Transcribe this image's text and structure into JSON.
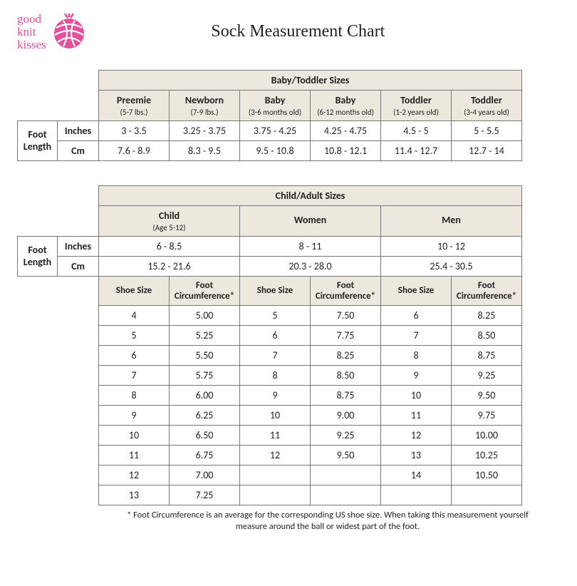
{
  "brand": {
    "line1": "good",
    "line2": "knit",
    "line3": "kisses",
    "color": "#e84f9b"
  },
  "title": "Sock Measurement Chart",
  "table1": {
    "header_strip": "Baby/Toddler Sizes",
    "row_label": "Foot Length",
    "unit1": "Inches",
    "unit2": "Cm",
    "cols": [
      {
        "name": "Preemie",
        "sub": "(5-7 lbs.)"
      },
      {
        "name": "Newborn",
        "sub": "(7-9 lbs.)"
      },
      {
        "name": "Baby",
        "sub": "(3-6 months old)"
      },
      {
        "name": "Baby",
        "sub": "(6-12 months old)"
      },
      {
        "name": "Toddler",
        "sub": "(1-2 years old)"
      },
      {
        "name": "Toddler",
        "sub": "(3-4 years old)"
      }
    ],
    "inches": [
      "3 - 3.5",
      "3.25 - 3.75",
      "3.75 - 4.25",
      "4.25 - 4.75",
      "4.5 - 5",
      "5 - 5.5"
    ],
    "cm": [
      "7.6 - 8.9",
      "8.3 - 9.5",
      "9.5 - 10.8",
      "10.8 - 12.1",
      "11.4 - 12.7",
      "12.7 - 14"
    ]
  },
  "table2": {
    "header_strip": "Child/Adult Sizes",
    "row_label": "Foot Length",
    "unit1": "Inches",
    "unit2": "Cm",
    "groups": [
      {
        "name": "Child",
        "sub": "(Age 5-12)"
      },
      {
        "name": "Women",
        "sub": ""
      },
      {
        "name": "Men",
        "sub": ""
      }
    ],
    "inches": [
      "6 - 8.5",
      "8 - 11",
      "10 - 12"
    ],
    "cm": [
      "15.2 - 21.6",
      "20.3 - 28.0",
      "25.4 - 30.5"
    ],
    "sub_headers": [
      "Shoe Size",
      "Foot Circumference*",
      "Shoe Size",
      "Foot Circumference*",
      "Shoe Size",
      "Foot Circumference*"
    ],
    "rows": [
      [
        "4",
        "5.00",
        "5",
        "7.50",
        "6",
        "8.25"
      ],
      [
        "5",
        "5.25",
        "6",
        "7.75",
        "7",
        "8.50"
      ],
      [
        "6",
        "5.50",
        "7",
        "8.25",
        "8",
        "8.75"
      ],
      [
        "7",
        "5.75",
        "8",
        "8.50",
        "9",
        "9.25"
      ],
      [
        "8",
        "6.00",
        "9",
        "8.75",
        "10",
        "9.50"
      ],
      [
        "9",
        "6.25",
        "10",
        "9.00",
        "11",
        "9.75"
      ],
      [
        "10",
        "6.50",
        "11",
        "9.25",
        "12",
        "10.00"
      ],
      [
        "11",
        "6.75",
        "12",
        "9.50",
        "13",
        "10.25"
      ],
      [
        "12",
        "7.00",
        "",
        "",
        "14",
        "10.50"
      ],
      [
        "13",
        "7.25",
        "",
        "",
        "",
        ""
      ]
    ]
  },
  "footnote": "* Foot Circumference is an average for the corresponding US shoe size.  When taking this measurement yourself measure around the ball or widest part of the foot.",
  "styles": {
    "header_bg": "#ece8de",
    "border_color": "#777777",
    "page_bg": "#ffffff",
    "title_fontsize": 24,
    "body_fontsize": 14,
    "sub_fontsize": 11,
    "footnote_fontsize": 12.5
  }
}
